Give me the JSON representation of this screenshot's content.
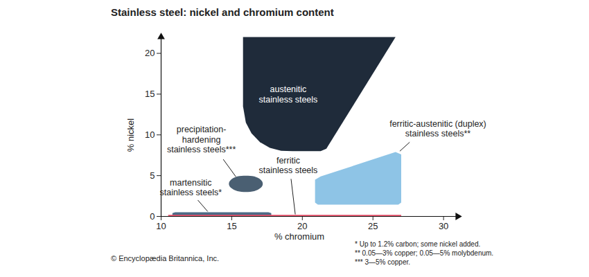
{
  "chart_data": {
    "type": "region",
    "title": "Stainless steel: nickel and chromium content",
    "x_label": "% chromium",
    "y_label": "% nickel",
    "xlim": [
      10,
      31
    ],
    "ylim": [
      0,
      22
    ],
    "xticks": [
      10,
      15,
      20,
      25,
      30
    ],
    "yticks": [
      0,
      5,
      10,
      15,
      20
    ],
    "grid": false,
    "series": [
      {
        "name": "austenitic\nstainless steels",
        "color": "#1f2b3a",
        "x": [
          15.8,
          15.8,
          16.0,
          16.4,
          17.0,
          17.7,
          18.5,
          19.3,
          21.3,
          21.7,
          26.6
        ],
        "values": [
          22,
          13.5,
          11.5,
          10.2,
          9.1,
          8.4,
          8.05,
          8.0,
          8.0,
          8.3,
          22
        ],
        "label_x": 19.0,
        "label_y": 15.0
      },
      {
        "name": "precipitation-\nhardening\nstainless steels***",
        "color": "#4a5f72",
        "line_style": "smooth",
        "x": [
          17.2,
          17.05,
          16.6,
          16.0,
          15.4,
          14.95,
          14.8,
          14.95,
          15.4,
          16.0,
          16.6,
          17.05
        ],
        "values": [
          4.0,
          4.5,
          4.9,
          5.0,
          4.9,
          4.5,
          4.0,
          3.5,
          3.1,
          3.0,
          3.1,
          3.5
        ],
        "label_x": 12.85,
        "label_y": 9.45,
        "leader_x": [
          14.4,
          15.3
        ],
        "leader_y": [
          7.0,
          4.85
        ]
      },
      {
        "name": "martensitic\nstainless steels*",
        "color": "#4d6a85",
        "x": [
          10.8,
          10.8,
          11.0,
          17.6,
          17.8,
          17.8
        ],
        "values": [
          0,
          0.4,
          0.5,
          0.5,
          0.4,
          0
        ],
        "label_x": 12.1,
        "label_y": 3.6,
        "leader_x": [
          12.6,
          13.3
        ],
        "leader_y": [
          2.0,
          0.6
        ]
      },
      {
        "name": "ferritic\nstainless steels",
        "color": "#e8506a",
        "x": [
          10.5,
          27.0,
          27.0,
          10.5
        ],
        "values": [
          0,
          0,
          0.2,
          0.2
        ],
        "label_x": 19.0,
        "label_y": 6.3,
        "leader_x": [
          19.2,
          19.5
        ],
        "leader_y": [
          4.6,
          0.25
        ]
      },
      {
        "name": "ferritic-austenitic (duplex)\nstainless steels**",
        "color": "#8ec4e6",
        "x": [
          20.9,
          20.9,
          21.3,
          26.6,
          27.0,
          27.0,
          26.8,
          21.1
        ],
        "values": [
          1.7,
          4.5,
          4.9,
          7.9,
          7.6,
          1.7,
          1.45,
          1.45
        ],
        "label_x": 29.6,
        "label_y": 10.8,
        "leader_x": [
          27.6,
          26.9
        ],
        "leader_y": [
          9.1,
          8.0
        ]
      }
    ],
    "notes": [
      "* Up to 1.2% carbon; some nickel added.",
      "** 0.05—3% copper; 0.05—5% molybdenum.",
      "*** 3—5% copper."
    ],
    "source": "© Encyclopædia Britannica, Inc."
  }
}
